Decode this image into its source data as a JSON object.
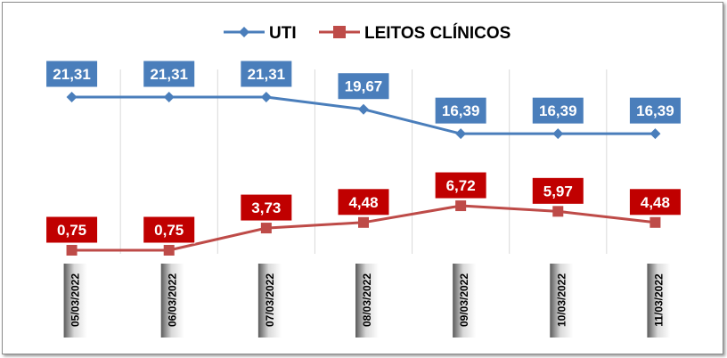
{
  "chart_data": {
    "type": "line",
    "title": "",
    "xlabel": "",
    "ylabel": "",
    "categories": [
      "05/03/2022",
      "06/03/2022",
      "07/03/2022",
      "08/03/2022",
      "09/03/2022",
      "10/03/2022",
      "11/03/2022"
    ],
    "series": [
      {
        "name": "UTI",
        "values": [
          21.31,
          21.31,
          21.31,
          19.67,
          16.39,
          16.39,
          16.39
        ],
        "labels": [
          "21,31",
          "21,31",
          "21,31",
          "19,67",
          "16,39",
          "16,39",
          "16,39"
        ],
        "color": "#4a7ebb",
        "label_bg": "#4a7ebb",
        "marker": "diamond"
      },
      {
        "name": "LEITOS CLÍNICOS",
        "values": [
          0.75,
          0.75,
          3.73,
          4.48,
          6.72,
          5.97,
          4.48
        ],
        "labels": [
          "0,75",
          "0,75",
          "3,73",
          "4,48",
          "6,72",
          "5,97",
          "4,48"
        ],
        "color": "#be4b48",
        "label_bg": "#c00000",
        "marker": "square"
      }
    ],
    "legend": "top-center",
    "grid": "vertical",
    "y_axis_visible": false
  }
}
